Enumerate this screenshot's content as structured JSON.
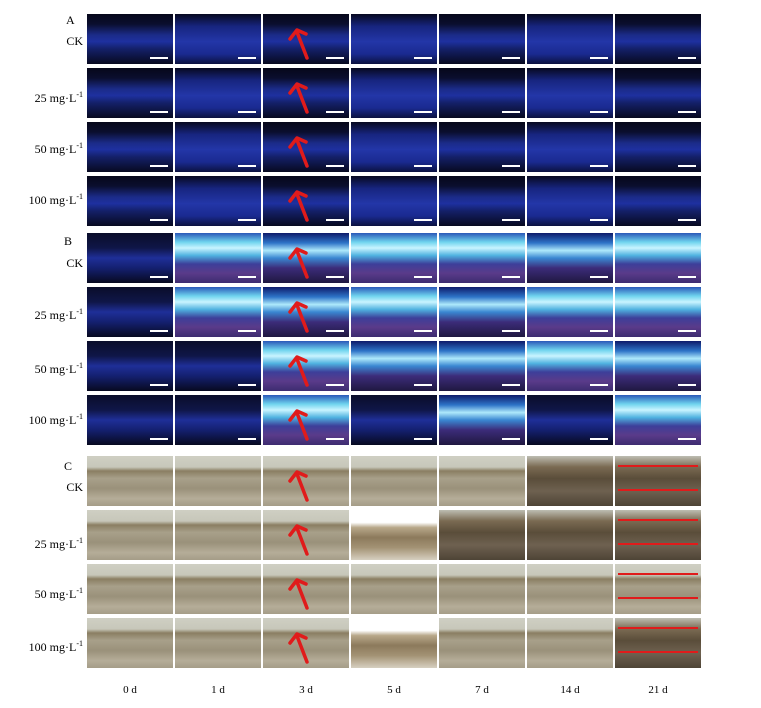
{
  "panels": [
    {
      "letter": "A",
      "rows": [
        "CK",
        "25 mg·L",
        "50 mg·L",
        "100 mg·L"
      ]
    },
    {
      "letter": "B",
      "rows": [
        "CK",
        "25 mg·L",
        "50 mg·L",
        "100 mg·L"
      ]
    },
    {
      "letter": "C",
      "rows": [
        "CK",
        "25 mg·L",
        "50 mg·L",
        "100 mg·L"
      ]
    }
  ],
  "unit_superscript": "-1",
  "days": [
    "0 d",
    "1 d",
    "3 d",
    "5 d",
    "7 d",
    "14 d",
    "21 d"
  ],
  "colors": {
    "arrow": "#e01b1b",
    "measure_line": "#e01b1b"
  }
}
